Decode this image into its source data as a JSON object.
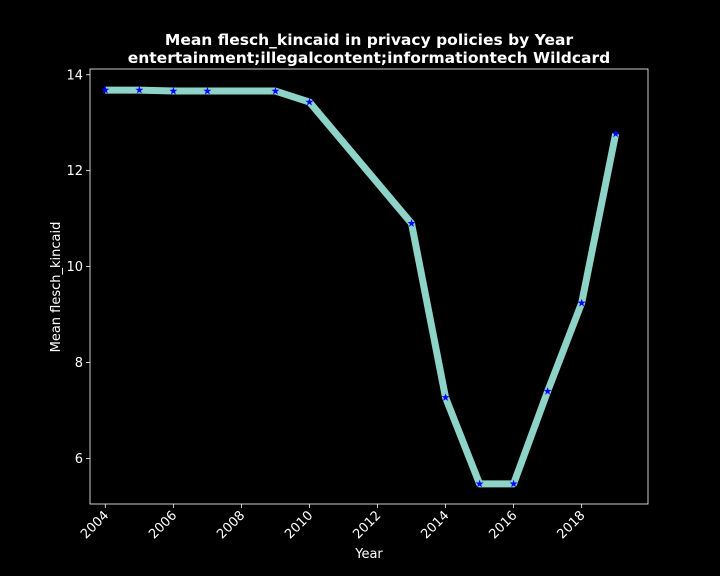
{
  "chart_data": {
    "type": "line",
    "title_line1": "Mean flesch_kincaid in privacy policies by Year",
    "title_line2": "entertainment;illegalcontent;informationtech Wildcard",
    "xlabel": "Year",
    "ylabel": "Mean flesch_kincaid",
    "xlim": [
      2003.55,
      2019.95
    ],
    "ylim": [
      5.05,
      14.12
    ],
    "x_ticks": [
      2004,
      2006,
      2008,
      2010,
      2012,
      2014,
      2016,
      2018
    ],
    "y_ticks": [
      6,
      8,
      10,
      12,
      14
    ],
    "grid": false,
    "series": [
      {
        "x": [
          2004,
          2005,
          2006,
          2007,
          2009,
          2010,
          2013,
          2014,
          2015,
          2016,
          2017,
          2018,
          2019
        ],
        "y": [
          13.68,
          13.68,
          13.66,
          13.66,
          13.66,
          13.43,
          10.9,
          7.27,
          5.47,
          5.47,
          7.4,
          9.24,
          12.77
        ],
        "line_color": "#8dd3c7",
        "marker": "star",
        "marker_color": "#0000ff"
      }
    ],
    "colors": {
      "background": "#000000",
      "axes": "#ffffff",
      "text": "#ffffff"
    }
  }
}
